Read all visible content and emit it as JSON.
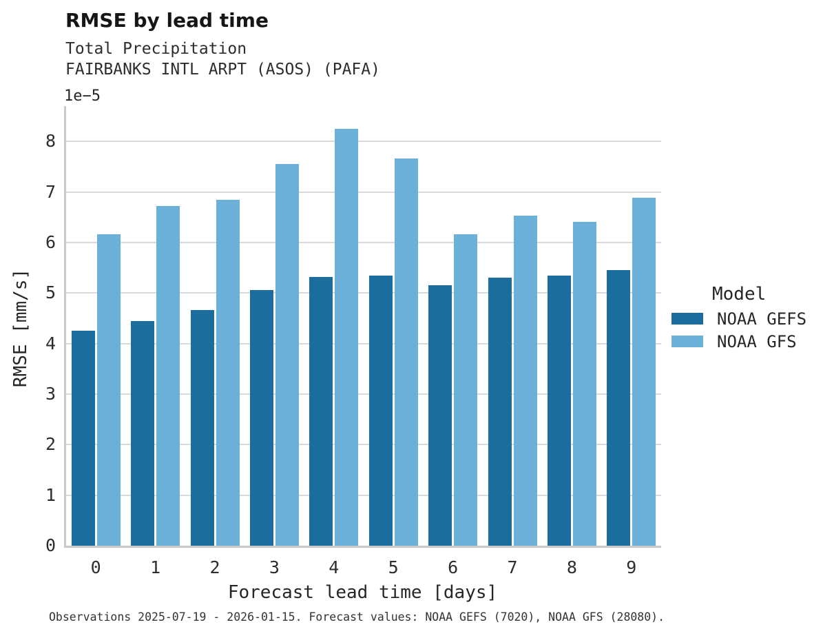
{
  "header": {
    "title": "RMSE by lead time",
    "subtitle1": "Total Precipitation",
    "subtitle2": "FAIRBANKS INTL ARPT (ASOS) (PAFA)"
  },
  "axes": {
    "offset_label": "1e−5",
    "ylabel": "RMSE [mm/s]",
    "xlabel": "Forecast lead time [days]"
  },
  "legend": {
    "title": "Model",
    "items": [
      {
        "label": "NOAA GEFS",
        "color": "#1b6d9e"
      },
      {
        "label": "NOAA GFS",
        "color": "#6bb0d9"
      }
    ]
  },
  "caption": "Observations 2025-07-19 - 2026-01-15. Forecast values: NOAA GEFS (7020), NOAA GFS (28080).",
  "chart_data": {
    "type": "bar",
    "title": "RMSE by lead time",
    "subtitle": [
      "Total Precipitation",
      "FAIRBANKS INTL ARPT (ASOS) (PAFA)"
    ],
    "xlabel": "Forecast lead time [days]",
    "ylabel": "RMSE [mm/s]",
    "value_scale": "1e-5",
    "categories": [
      "0",
      "1",
      "2",
      "3",
      "4",
      "5",
      "6",
      "7",
      "8",
      "9"
    ],
    "series": [
      {
        "name": "NOAA GEFS",
        "color": "#1b6d9e",
        "values": [
          4.25,
          4.45,
          4.67,
          5.06,
          5.32,
          5.34,
          5.16,
          5.31,
          5.34,
          5.45
        ]
      },
      {
        "name": "NOAA GFS",
        "color": "#6bb0d9",
        "values": [
          6.17,
          6.73,
          6.85,
          7.55,
          8.25,
          7.67,
          6.17,
          6.53,
          6.41,
          6.89
        ]
      }
    ],
    "ylim": [
      0,
      8.7
    ],
    "yticks": [
      0,
      1,
      2,
      3,
      4,
      5,
      6,
      7,
      8
    ],
    "grid": "horizontal",
    "legend_position": "center-right",
    "legend_title": "Model"
  }
}
